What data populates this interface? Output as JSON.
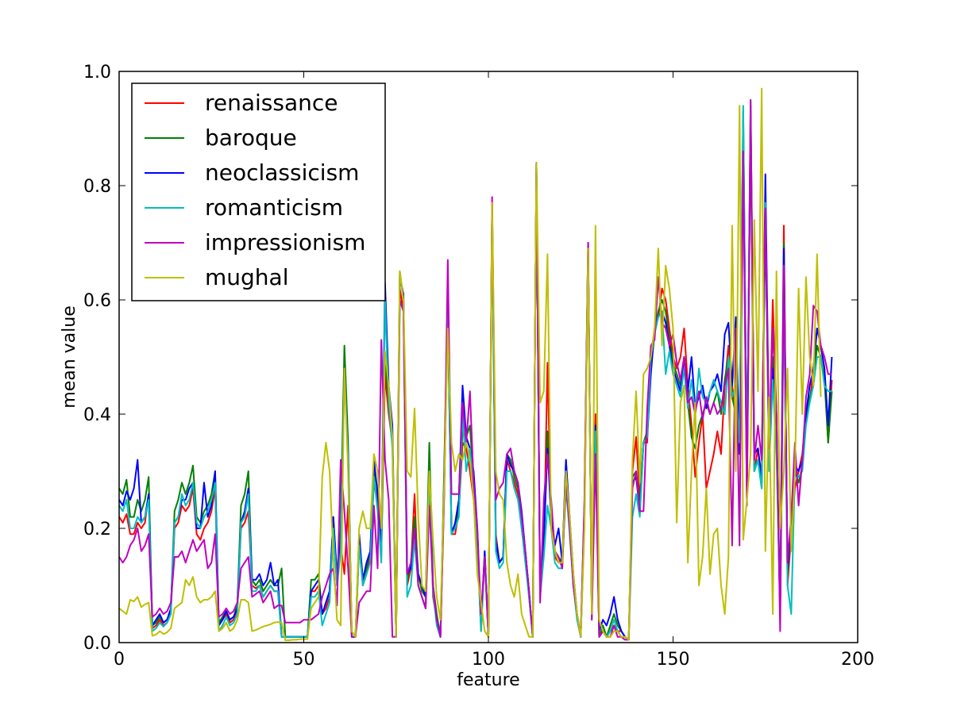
{
  "chart_data": {
    "type": "line",
    "title": "",
    "xlabel": "feature",
    "ylabel": "mean value",
    "xlim": [
      0,
      200
    ],
    "ylim": [
      0.0,
      1.0
    ],
    "xticks": [
      "0",
      "50",
      "100",
      "150",
      "200"
    ],
    "yticks": [
      "0.0",
      "0.2",
      "0.4",
      "0.6",
      "0.8",
      "1.0"
    ],
    "grid": false,
    "legend_position": "top-left",
    "x_note": "x = feature index 0..191 (one value per index)",
    "series": [
      {
        "name": "renaissance",
        "color": "#ff0000",
        "values": [
          0.22,
          0.21,
          0.225,
          0.19,
          0.19,
          0.21,
          0.2,
          0.21,
          0.26,
          0.025,
          0.03,
          0.04,
          0.03,
          0.035,
          0.05,
          0.2,
          0.21,
          0.24,
          0.23,
          0.24,
          0.27,
          0.19,
          0.18,
          0.2,
          0.21,
          0.23,
          0.27,
          0.03,
          0.04,
          0.05,
          0.035,
          0.04,
          0.06,
          0.2,
          0.21,
          0.23,
          0.1,
          0.095,
          0.1,
          0.08,
          0.09,
          0.1,
          0.09,
          0.09,
          0.01,
          0.01,
          0.01,
          0.01,
          0.01,
          0.01,
          0.01,
          0.01,
          0.09,
          0.09,
          0.1,
          0.05,
          0.06,
          0.08,
          0.2,
          0.1,
          0.17,
          0.12,
          0.24,
          0.01,
          0.01,
          0.17,
          0.1,
          0.12,
          0.15,
          0.28,
          0.25,
          0.15,
          0.47,
          0.4,
          0.35,
          0.01,
          0.62,
          0.58,
          0.1,
          0.13,
          0.26,
          0.1,
          0.08,
          0.06,
          0.3,
          0.08,
          0.04,
          0.01,
          0.25,
          0.62,
          0.19,
          0.19,
          0.23,
          0.35,
          0.34,
          0.3,
          0.25,
          0.17,
          0.02,
          0.15,
          0.01,
          0.77,
          0.19,
          0.14,
          0.15,
          0.32,
          0.3,
          0.28,
          0.26,
          0.2,
          0.15,
          0.08,
          0.01,
          0.84,
          0.1,
          0.16,
          0.49,
          0.2,
          0.15,
          0.14,
          0.14,
          0.27,
          0.2,
          0.1,
          0.05,
          0.01,
          0.22,
          0.7,
          0.05,
          0.4,
          0.01,
          0.02,
          0.01,
          0.02,
          0.03,
          0.02,
          0.02,
          0.01,
          0.005,
          0.3,
          0.36,
          0.25,
          0.35,
          0.35,
          0.5,
          0.55,
          0.57,
          0.62,
          0.6,
          0.55,
          0.5,
          0.48,
          0.5,
          0.55,
          0.45,
          0.38,
          0.29,
          0.35,
          0.4,
          0.27,
          0.3,
          0.33,
          0.37,
          0.33,
          0.45,
          0.52,
          0.45,
          0.4,
          0.35,
          0.85,
          0.25,
          0.9,
          0.3,
          0.34,
          0.29,
          0.75,
          0.33,
          0.6,
          0.4,
          0.04,
          0.73,
          0.1,
          0.19,
          0.27,
          0.3,
          0.33,
          0.4,
          0.42,
          0.48,
          0.55,
          0.52,
          0.48,
          0.35,
          0.46
        ]
      },
      {
        "name": "baroque",
        "color": "#008000",
        "values": [
          0.27,
          0.26,
          0.285,
          0.22,
          0.22,
          0.25,
          0.23,
          0.25,
          0.29,
          0.03,
          0.035,
          0.045,
          0.035,
          0.04,
          0.055,
          0.23,
          0.25,
          0.28,
          0.26,
          0.28,
          0.31,
          0.22,
          0.21,
          0.23,
          0.24,
          0.26,
          0.3,
          0.035,
          0.045,
          0.055,
          0.04,
          0.045,
          0.065,
          0.24,
          0.26,
          0.3,
          0.11,
          0.1,
          0.11,
          0.09,
          0.1,
          0.11,
          0.1,
          0.1,
          0.13,
          0.01,
          0.01,
          0.01,
          0.01,
          0.01,
          0.01,
          0.01,
          0.11,
          0.11,
          0.12,
          0.05,
          0.07,
          0.09,
          0.22,
          0.12,
          0.2,
          0.52,
          0.35,
          0.01,
          0.01,
          0.18,
          0.11,
          0.13,
          0.16,
          0.3,
          0.27,
          0.16,
          0.5,
          0.42,
          0.36,
          0.01,
          0.65,
          0.6,
          0.11,
          0.14,
          0.22,
          0.12,
          0.09,
          0.08,
          0.35,
          0.1,
          0.05,
          0.01,
          0.3,
          0.6,
          0.2,
          0.2,
          0.24,
          0.37,
          0.36,
          0.38,
          0.28,
          0.19,
          0.03,
          0.16,
          0.01,
          0.76,
          0.17,
          0.14,
          0.15,
          0.33,
          0.32,
          0.29,
          0.27,
          0.22,
          0.16,
          0.09,
          0.01,
          0.83,
          0.09,
          0.17,
          0.37,
          0.21,
          0.16,
          0.15,
          0.14,
          0.32,
          0.21,
          0.11,
          0.05,
          0.01,
          0.23,
          0.69,
          0.05,
          0.38,
          0.01,
          0.03,
          0.01,
          0.03,
          0.05,
          0.03,
          0.02,
          0.01,
          0.005,
          0.29,
          0.3,
          0.24,
          0.35,
          0.37,
          0.48,
          0.54,
          0.58,
          0.6,
          0.58,
          0.53,
          0.49,
          0.47,
          0.45,
          0.5,
          0.42,
          0.36,
          0.34,
          0.38,
          0.4,
          0.42,
          0.4,
          0.42,
          0.44,
          0.4,
          0.46,
          0.5,
          0.43,
          0.4,
          0.37,
          0.9,
          0.28,
          0.92,
          0.3,
          0.32,
          0.27,
          0.74,
          0.32,
          0.5,
          0.38,
          0.06,
          0.7,
          0.12,
          0.2,
          0.3,
          0.28,
          0.31,
          0.39,
          0.43,
          0.45,
          0.52,
          0.5,
          0.46,
          0.35,
          0.44
        ]
      },
      {
        "name": "neoclassicism",
        "color": "#0000ff",
        "values": [
          0.25,
          0.24,
          0.265,
          0.25,
          0.27,
          0.32,
          0.21,
          0.22,
          0.26,
          0.03,
          0.04,
          0.05,
          0.035,
          0.04,
          0.06,
          0.21,
          0.22,
          0.25,
          0.25,
          0.27,
          0.28,
          0.2,
          0.2,
          0.28,
          0.22,
          0.24,
          0.3,
          0.03,
          0.04,
          0.055,
          0.04,
          0.045,
          0.06,
          0.21,
          0.23,
          0.27,
          0.11,
          0.11,
          0.12,
          0.1,
          0.11,
          0.14,
          0.1,
          0.11,
          0.01,
          0.01,
          0.01,
          0.01,
          0.01,
          0.01,
          0.01,
          0.01,
          0.09,
          0.1,
          0.11,
          0.05,
          0.07,
          0.09,
          0.22,
          0.11,
          0.18,
          0.48,
          0.33,
          0.01,
          0.01,
          0.19,
          0.11,
          0.14,
          0.16,
          0.32,
          0.26,
          0.18,
          0.63,
          0.45,
          0.38,
          0.01,
          0.64,
          0.61,
          0.12,
          0.13,
          0.2,
          0.12,
          0.1,
          0.08,
          0.3,
          0.1,
          0.04,
          0.01,
          0.28,
          0.58,
          0.19,
          0.21,
          0.25,
          0.45,
          0.36,
          0.34,
          0.3,
          0.2,
          0.03,
          0.16,
          0.01,
          0.76,
          0.18,
          0.14,
          0.15,
          0.33,
          0.31,
          0.3,
          0.28,
          0.23,
          0.16,
          0.09,
          0.01,
          0.84,
          0.08,
          0.18,
          0.34,
          0.22,
          0.17,
          0.2,
          0.14,
          0.32,
          0.22,
          0.12,
          0.05,
          0.01,
          0.24,
          0.7,
          0.05,
          0.38,
          0.02,
          0.04,
          0.03,
          0.05,
          0.08,
          0.04,
          0.02,
          0.01,
          0.005,
          0.28,
          0.29,
          0.23,
          0.35,
          0.36,
          0.47,
          0.55,
          0.57,
          0.58,
          0.56,
          0.52,
          0.48,
          0.46,
          0.44,
          0.5,
          0.44,
          0.5,
          0.41,
          0.43,
          0.45,
          0.41,
          0.44,
          0.45,
          0.47,
          0.44,
          0.54,
          0.56,
          0.45,
          0.57,
          0.33,
          0.93,
          0.3,
          0.94,
          0.33,
          0.34,
          0.28,
          0.82,
          0.35,
          0.48,
          0.35,
          0.05,
          0.69,
          0.13,
          0.21,
          0.31,
          0.3,
          0.32,
          0.4,
          0.45,
          0.48,
          0.55,
          0.52,
          0.48,
          0.38,
          0.5
        ]
      },
      {
        "name": "romanticism",
        "color": "#00bfbf",
        "values": [
          0.24,
          0.23,
          0.25,
          0.2,
          0.2,
          0.22,
          0.21,
          0.22,
          0.25,
          0.02,
          0.025,
          0.035,
          0.028,
          0.035,
          0.05,
          0.21,
          0.22,
          0.26,
          0.24,
          0.25,
          0.28,
          0.21,
          0.2,
          0.22,
          0.23,
          0.25,
          0.28,
          0.02,
          0.03,
          0.045,
          0.03,
          0.035,
          0.05,
          0.21,
          0.22,
          0.26,
          0.09,
          0.09,
          0.1,
          0.08,
          0.09,
          0.1,
          0.09,
          0.09,
          0.01,
          0.01,
          0.01,
          0.01,
          0.01,
          0.01,
          0.01,
          0.01,
          0.08,
          0.08,
          0.09,
          0.03,
          0.05,
          0.07,
          0.2,
          0.1,
          0.16,
          0.47,
          0.32,
          0.01,
          0.01,
          0.17,
          0.1,
          0.12,
          0.14,
          0.29,
          0.23,
          0.14,
          0.6,
          0.42,
          0.34,
          0.01,
          0.6,
          0.58,
          0.08,
          0.1,
          0.18,
          0.1,
          0.08,
          0.06,
          0.29,
          0.09,
          0.03,
          0.01,
          0.26,
          0.59,
          0.19,
          0.2,
          0.22,
          0.4,
          0.3,
          0.34,
          0.27,
          0.18,
          0.02,
          0.15,
          0.01,
          0.75,
          0.16,
          0.13,
          0.14,
          0.3,
          0.3,
          0.27,
          0.25,
          0.2,
          0.14,
          0.08,
          0.01,
          0.84,
          0.08,
          0.15,
          0.24,
          0.2,
          0.14,
          0.13,
          0.13,
          0.28,
          0.19,
          0.1,
          0.04,
          0.01,
          0.21,
          0.68,
          0.04,
          0.37,
          0.01,
          0.02,
          0.01,
          0.02,
          0.04,
          0.02,
          0.01,
          0.01,
          0.005,
          0.22,
          0.26,
          0.22,
          0.35,
          0.36,
          0.5,
          0.54,
          0.57,
          0.58,
          0.47,
          0.51,
          0.47,
          0.45,
          0.43,
          0.48,
          0.41,
          0.46,
          0.4,
          0.48,
          0.43,
          0.42,
          0.44,
          0.46,
          0.44,
          0.42,
          0.4,
          0.5,
          0.43,
          0.45,
          0.35,
          0.94,
          0.29,
          0.95,
          0.3,
          0.32,
          0.27,
          0.77,
          0.3,
          0.46,
          0.33,
          0.06,
          0.6,
          0.1,
          0.05,
          0.3,
          0.29,
          0.3,
          0.38,
          0.42,
          0.45,
          0.5,
          0.5,
          0.45,
          0.44,
          0.44
        ]
      },
      {
        "name": "impressionism",
        "color": "#bf00bf",
        "values": [
          0.15,
          0.14,
          0.15,
          0.17,
          0.18,
          0.2,
          0.16,
          0.17,
          0.19,
          0.045,
          0.05,
          0.06,
          0.05,
          0.055,
          0.07,
          0.15,
          0.15,
          0.16,
          0.14,
          0.16,
          0.18,
          0.16,
          0.17,
          0.18,
          0.13,
          0.14,
          0.19,
          0.045,
          0.05,
          0.06,
          0.05,
          0.055,
          0.07,
          0.13,
          0.14,
          0.15,
          0.08,
          0.085,
          0.09,
          0.07,
          0.08,
          0.09,
          0.06,
          0.065,
          0.065,
          0.035,
          0.035,
          0.035,
          0.035,
          0.035,
          0.04,
          0.04,
          0.04,
          0.045,
          0.05,
          0.08,
          0.1,
          0.12,
          0.13,
          0.065,
          0.32,
          0.23,
          0.13,
          0.01,
          0.01,
          0.07,
          0.08,
          0.09,
          0.09,
          0.24,
          0.13,
          0.53,
          0.32,
          0.25,
          0.01,
          0.01,
          0.6,
          0.58,
          0.12,
          0.14,
          0.2,
          0.1,
          0.08,
          0.06,
          0.24,
          0.1,
          0.04,
          0.01,
          0.26,
          0.67,
          0.26,
          0.26,
          0.26,
          0.42,
          0.35,
          0.44,
          0.28,
          0.2,
          0.05,
          0.15,
          0.01,
          0.78,
          0.25,
          0.27,
          0.28,
          0.33,
          0.34,
          0.3,
          0.28,
          0.22,
          0.16,
          0.09,
          0.01,
          0.84,
          0.07,
          0.25,
          0.33,
          0.25,
          0.16,
          0.15,
          0.13,
          0.29,
          0.2,
          0.1,
          0.05,
          0.01,
          0.25,
          0.7,
          0.04,
          0.33,
          0.01,
          0.02,
          0.01,
          0.01,
          0.03,
          0.01,
          0.01,
          0.005,
          0.005,
          0.27,
          0.3,
          0.23,
          0.23,
          0.41,
          0.52,
          0.53,
          0.64,
          0.56,
          0.55,
          0.52,
          0.54,
          0.49,
          0.46,
          0.5,
          0.42,
          0.43,
          0.4,
          0.44,
          0.39,
          0.43,
          0.4,
          0.42,
          0.4,
          0.41,
          0.45,
          0.48,
          0.17,
          0.55,
          0.17,
          0.86,
          0.24,
          0.95,
          0.32,
          0.38,
          0.32,
          0.76,
          0.34,
          0.55,
          0.4,
          0.02,
          0.66,
          0.14,
          0.22,
          0.35,
          0.24,
          0.32,
          0.43,
          0.47,
          0.59,
          0.58,
          0.52,
          0.5,
          0.47,
          0.47
        ]
      },
      {
        "name": "mughal",
        "color": "#bfbf00",
        "values": [
          0.06,
          0.055,
          0.05,
          0.075,
          0.072,
          0.08,
          0.062,
          0.067,
          0.07,
          0.012,
          0.014,
          0.02,
          0.015,
          0.018,
          0.025,
          0.06,
          0.065,
          0.07,
          0.11,
          0.1,
          0.115,
          0.08,
          0.07,
          0.075,
          0.075,
          0.08,
          0.09,
          0.02,
          0.025,
          0.035,
          0.02,
          0.025,
          0.04,
          0.075,
          0.075,
          0.07,
          0.02,
          0.022,
          0.025,
          0.028,
          0.03,
          0.032,
          0.035,
          0.036,
          0.035,
          0.004,
          0.004,
          0.005,
          0.005,
          0.006,
          0.006,
          0.006,
          0.06,
          0.07,
          0.08,
          0.29,
          0.35,
          0.3,
          0.15,
          0.04,
          0.03,
          0.48,
          0.3,
          0.02,
          0.01,
          0.2,
          0.23,
          0.2,
          0.2,
          0.33,
          0.3,
          0.2,
          0.51,
          0.45,
          0.36,
          0.01,
          0.65,
          0.6,
          0.3,
          0.29,
          0.41,
          0.22,
          0.1,
          0.09,
          0.3,
          0.18,
          0.08,
          0.04,
          0.27,
          0.55,
          0.35,
          0.3,
          0.33,
          0.32,
          0.35,
          0.32,
          0.25,
          0.12,
          0.07,
          0.02,
          0.01,
          0.77,
          0.3,
          0.26,
          0.25,
          0.14,
          0.1,
          0.08,
          0.12,
          0.05,
          0.03,
          0.01,
          0.01,
          0.84,
          0.42,
          0.44,
          0.68,
          0.2,
          0.16,
          0.14,
          0.14,
          0.3,
          0.22,
          0.12,
          0.05,
          0.01,
          0.2,
          0.69,
          0.05,
          0.73,
          0.04,
          0.02,
          0.01,
          0.01,
          0.02,
          0.02,
          0.01,
          0.01,
          0.005,
          0.32,
          0.44,
          0.28,
          0.47,
          0.48,
          0.5,
          0.55,
          0.69,
          0.52,
          0.66,
          0.62,
          0.55,
          0.21,
          0.42,
          0.45,
          0.14,
          0.3,
          0.42,
          0.1,
          0.15,
          0.27,
          0.12,
          0.19,
          0.2,
          0.1,
          0.05,
          0.15,
          0.73,
          0.3,
          0.94,
          0.18,
          0.25,
          0.33,
          0.74,
          0.44,
          0.97,
          0.16,
          0.43,
          0.05,
          0.65,
          0.2,
          0.3,
          0.48,
          0.16,
          0.3,
          0.62,
          0.4,
          0.64,
          0.5,
          0.45,
          0.68,
          0.43
        ]
      }
    ]
  }
}
